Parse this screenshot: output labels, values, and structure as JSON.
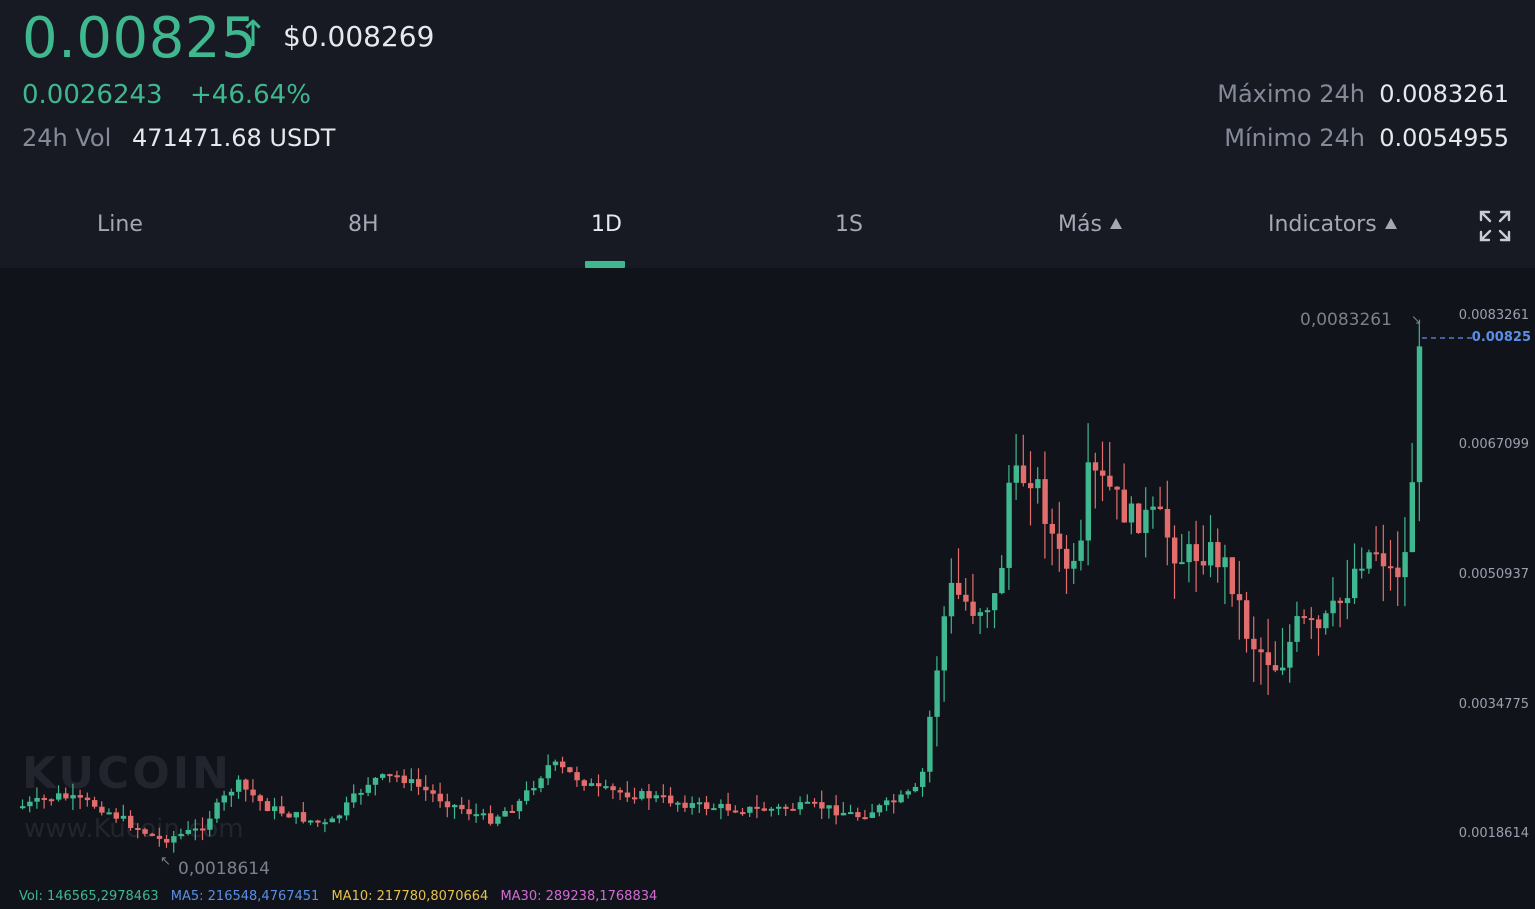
{
  "ticker": {
    "price": "0.00825",
    "price_usd": "$0.008269",
    "change_abs": "0.0026243",
    "change_pct": "+46.64%",
    "vol_label": "24h Vol",
    "vol_value": "471471.68 USDT",
    "high_label": "Máximo 24h",
    "high_value": "0.0083261",
    "low_label": "Mínimo 24h",
    "low_value": "0.0054955"
  },
  "tabs": {
    "line": "Line",
    "h8": "8H",
    "d1": "1D",
    "w1": "1S",
    "more": "Más",
    "indicators": "Indicators",
    "active": "1D"
  },
  "chart": {
    "price_axis": [
      "0.0083261",
      "0.0067099",
      "0.0050937",
      "0.0034775",
      "0.0018614"
    ],
    "current_price_label": "0.00825",
    "max_label": "0,0083261",
    "min_label": "0,0018614",
    "watermark_brand": "KUCOIN",
    "watermark_url": "www.Kucoin.com",
    "colors": {
      "up": "#3fb78f",
      "down": "#e26d6d",
      "current_line": "#5b8ee6"
    }
  },
  "indicators": {
    "vol": "Vol: 146565,2978463",
    "ma5": "MA5: 216548,4767451",
    "ma10": "MA10: 217780,8070664",
    "ma30": "MA30: 289238,1768834",
    "colors": {
      "vol": "#3fb78f",
      "ma5": "#5b8ee6",
      "ma10": "#e6c14a",
      "ma30": "#d36ad6"
    }
  }
}
